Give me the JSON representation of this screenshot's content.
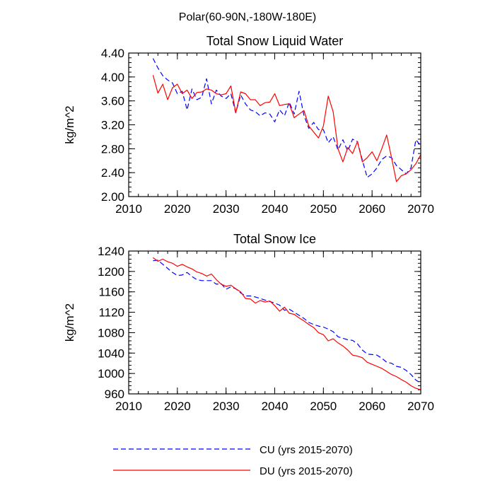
{
  "figure_title": "Polar(60-90N,-180W-180E)",
  "legend": {
    "items": [
      {
        "label": "CU (yrs 2015-2070)",
        "color": "#0000ff",
        "dash": "dashed"
      },
      {
        "label": "DU (yrs 2015-2070)",
        "color": "#ff0000",
        "dash": "solid"
      }
    ]
  },
  "chart_data": [
    {
      "type": "line",
      "title": "Total Snow Liquid Water",
      "xlabel": "",
      "ylabel": "kg/m^2",
      "xlim": [
        2010,
        2070
      ],
      "ylim": [
        2.0,
        4.4
      ],
      "xticks": [
        2010,
        2020,
        2030,
        2040,
        2050,
        2060,
        2070
      ],
      "xtick_labels": [
        "2010",
        "2020",
        "2030",
        "2040",
        "2050",
        "2060",
        "2070"
      ],
      "yticks": [
        2.0,
        2.4,
        2.8,
        3.2,
        3.6,
        4.0,
        4.4
      ],
      "ytick_labels": [
        "2.00",
        "2.40",
        "2.80",
        "3.20",
        "3.60",
        "4.00",
        "4.40"
      ],
      "x": [
        2015,
        2016,
        2017,
        2018,
        2019,
        2020,
        2021,
        2022,
        2023,
        2024,
        2025,
        2026,
        2027,
        2028,
        2029,
        2030,
        2031,
        2032,
        2033,
        2034,
        2035,
        2036,
        2037,
        2038,
        2039,
        2040,
        2041,
        2042,
        2043,
        2044,
        2045,
        2046,
        2047,
        2048,
        2049,
        2050,
        2051,
        2052,
        2053,
        2054,
        2055,
        2056,
        2057,
        2058,
        2059,
        2060,
        2061,
        2062,
        2063,
        2064,
        2065,
        2066,
        2067,
        2068,
        2069,
        2070
      ],
      "series": [
        {
          "name": "CU (yrs 2015-2070)",
          "color": "#0000ff",
          "dash": "dashed",
          "values": [
            4.31,
            4.15,
            4.02,
            3.95,
            3.9,
            3.72,
            3.76,
            3.45,
            3.8,
            3.62,
            3.66,
            3.97,
            3.55,
            3.78,
            3.68,
            3.64,
            3.72,
            3.4,
            3.7,
            3.55,
            3.45,
            3.42,
            3.35,
            3.4,
            3.38,
            3.25,
            3.45,
            3.35,
            3.58,
            3.38,
            3.76,
            3.36,
            3.14,
            3.24,
            3.12,
            3.12,
            2.9,
            3.0,
            2.78,
            2.95,
            2.76,
            2.96,
            2.92,
            2.61,
            2.32,
            2.38,
            2.48,
            2.62,
            2.68,
            2.65,
            2.52,
            2.45,
            2.38,
            2.48,
            2.95,
            2.85
          ]
        },
        {
          "name": "DU (yrs 2015-2070)",
          "color": "#ff0000",
          "dash": "solid",
          "values": [
            4.03,
            3.73,
            3.88,
            3.62,
            3.82,
            3.88,
            3.72,
            3.78,
            3.64,
            3.74,
            3.75,
            3.8,
            3.78,
            3.72,
            3.7,
            3.72,
            3.85,
            3.4,
            3.75,
            3.72,
            3.62,
            3.62,
            3.52,
            3.57,
            3.58,
            3.72,
            3.52,
            3.54,
            3.55,
            3.32,
            3.38,
            3.44,
            3.18,
            3.08,
            2.98,
            3.18,
            3.68,
            3.42,
            2.8,
            2.58,
            2.82,
            2.72,
            2.92,
            2.58,
            2.65,
            2.75,
            2.6,
            2.8,
            3.03,
            2.65,
            2.25,
            2.35,
            2.38,
            2.45,
            2.55,
            2.7
          ]
        }
      ]
    },
    {
      "type": "line",
      "title": "Total Snow Ice",
      "xlabel": "",
      "ylabel": "kg/m^2",
      "xlim": [
        2010,
        2070
      ],
      "ylim": [
        960,
        1240
      ],
      "xticks": [
        2010,
        2020,
        2030,
        2040,
        2050,
        2060,
        2070
      ],
      "xtick_labels": [
        "2010",
        "2020",
        "2030",
        "2040",
        "2050",
        "2060",
        "2070"
      ],
      "yticks": [
        960,
        1000,
        1040,
        1080,
        1120,
        1160,
        1200,
        1240
      ],
      "ytick_labels": [
        "960",
        "1000",
        "1040",
        "1080",
        "1120",
        "1160",
        "1200",
        "1240"
      ],
      "x": [
        2015,
        2016,
        2017,
        2018,
        2019,
        2020,
        2021,
        2022,
        2023,
        2024,
        2025,
        2026,
        2027,
        2028,
        2029,
        2030,
        2031,
        2032,
        2033,
        2034,
        2035,
        2036,
        2037,
        2038,
        2039,
        2040,
        2041,
        2042,
        2043,
        2044,
        2045,
        2046,
        2047,
        2048,
        2049,
        2050,
        2051,
        2052,
        2053,
        2054,
        2055,
        2056,
        2057,
        2058,
        2059,
        2060,
        2061,
        2062,
        2063,
        2064,
        2065,
        2066,
        2067,
        2068,
        2069,
        2070
      ],
      "series": [
        {
          "name": "CU (yrs 2015-2070)",
          "color": "#0000ff",
          "dash": "dashed",
          "values": [
            1221,
            1222,
            1214,
            1206,
            1198,
            1192,
            1193,
            1198,
            1190,
            1184,
            1182,
            1182,
            1182,
            1175,
            1176,
            1165,
            1170,
            1166,
            1158,
            1152,
            1152,
            1150,
            1147,
            1144,
            1141,
            1138,
            1134,
            1124,
            1126,
            1120,
            1114,
            1108,
            1100,
            1096,
            1093,
            1091,
            1087,
            1082,
            1072,
            1069,
            1066,
            1065,
            1058,
            1046,
            1038,
            1037,
            1036,
            1030,
            1022,
            1020,
            1014,
            1012,
            1006,
            998,
            987,
            981
          ]
        },
        {
          "name": "DU (yrs 2015-2070)",
          "color": "#ff0000",
          "dash": "solid",
          "values": [
            1227,
            1220,
            1224,
            1219,
            1216,
            1210,
            1214,
            1209,
            1205,
            1199,
            1196,
            1191,
            1195,
            1184,
            1175,
            1171,
            1173,
            1166,
            1160,
            1147,
            1146,
            1138,
            1143,
            1140,
            1142,
            1133,
            1122,
            1130,
            1118,
            1116,
            1109,
            1103,
            1096,
            1090,
            1080,
            1076,
            1064,
            1068,
            1060,
            1054,
            1046,
            1036,
            1034,
            1031,
            1022,
            1018,
            1014,
            1010,
            1004,
            998,
            994,
            988,
            983,
            976,
            971,
            968
          ]
        }
      ]
    }
  ]
}
